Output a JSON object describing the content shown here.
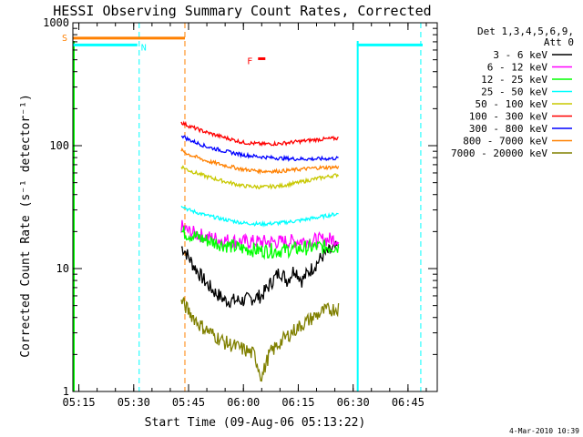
{
  "chart_data": {
    "type": "line",
    "title": "HESSI Observing Summary Count Rates, Corrected",
    "xlabel": "Start Time (09-Aug-06 05:13:22)",
    "ylabel": "Corrected Count Rate (s⁻¹ detector⁻¹)",
    "xlim": [
      "05:13:22",
      "06:53:00"
    ],
    "ylim": [
      1,
      1000
    ],
    "yscale": "log",
    "x_ticks": [
      "05:15",
      "05:30",
      "05:45",
      "06:00",
      "06:15",
      "06:30",
      "06:45"
    ],
    "y_ticks": [
      "1",
      "10",
      "100",
      "1000"
    ],
    "legend_title": [
      "Det 1,3,4,5,6,9,",
      "Att 0"
    ],
    "legend_position": "right",
    "footer": "4-Mar-2010 10:39",
    "series": [
      {
        "name": "3 - 6 keV",
        "color": "#000000",
        "x": [
          "05:43:00",
          "05:44:00",
          "05:46:00",
          "05:48:00",
          "05:50:00",
          "05:52:00",
          "05:55:00",
          "06:00:00",
          "06:05:00",
          "06:08:00",
          "06:10:00",
          "06:12:00",
          "06:14:00",
          "06:16:00",
          "06:18:00",
          "06:20:00",
          "06:22:00",
          "06:24:00",
          "06:26:00"
        ],
        "values": [
          15,
          14,
          11,
          9,
          7.5,
          6.5,
          5.5,
          5.5,
          6,
          8,
          9.5,
          8,
          10,
          8,
          9.5,
          11,
          13,
          14,
          15
        ]
      },
      {
        "name": "6 - 12 keV",
        "color": "#ff00ff",
        "x": [
          "05:43:00",
          "05:45:00",
          "05:50:00",
          "05:55:00",
          "06:00:00",
          "06:05:00",
          "06:10:00",
          "06:15:00",
          "06:20:00",
          "06:26:00"
        ],
        "values": [
          22,
          20,
          18,
          17,
          16.5,
          16.5,
          16.5,
          16.8,
          17,
          17.5
        ]
      },
      {
        "name": "12 - 25 keV",
        "color": "#00ff00",
        "x": [
          "05:43:00",
          "05:45:00",
          "05:50:00",
          "05:55:00",
          "06:00:00",
          "06:05:00",
          "06:10:00",
          "06:15:00",
          "06:20:00",
          "06:26:00"
        ],
        "values": [
          20,
          19,
          17,
          15.5,
          14.5,
          14,
          14,
          14.5,
          15,
          15
        ]
      },
      {
        "name": "25 - 50 keV",
        "color": "#00ffff",
        "x": [
          "05:43:00",
          "05:45:00",
          "05:50:00",
          "05:55:00",
          "06:00:00",
          "06:05:00",
          "06:10:00",
          "06:15:00",
          "06:20:00",
          "06:26:00"
        ],
        "values": [
          33,
          30,
          27,
          25,
          23.5,
          23,
          23.5,
          24.5,
          26,
          28
        ]
      },
      {
        "name": "50 - 100 keV",
        "color": "#c8c800",
        "x": [
          "05:43:00",
          "05:45:00",
          "05:50:00",
          "05:55:00",
          "06:00:00",
          "06:05:00",
          "06:10:00",
          "06:15:00",
          "06:20:00",
          "06:26:00"
        ],
        "values": [
          68,
          63,
          56,
          51,
          47,
          46,
          47,
          50,
          54,
          58
        ]
      },
      {
        "name": "100 - 300 keV",
        "color": "#ff0000",
        "x": [
          "05:43:00",
          "05:45:00",
          "05:50:00",
          "05:55:00",
          "06:00:00",
          "06:05:00",
          "06:10:00",
          "06:15:00",
          "06:20:00",
          "06:26:00"
        ],
        "values": [
          155,
          145,
          128,
          116,
          106,
          103,
          104,
          108,
          112,
          115
        ]
      },
      {
        "name": "300 - 800 keV",
        "color": "#0000ff",
        "x": [
          "05:43:00",
          "05:45:00",
          "05:50:00",
          "05:55:00",
          "06:00:00",
          "06:05:00",
          "06:10:00",
          "06:15:00",
          "06:20:00",
          "06:26:00"
        ],
        "values": [
          122,
          112,
          98,
          90,
          84,
          81,
          79,
          78,
          78,
          79
        ]
      },
      {
        "name": "800 - 7000 keV",
        "color": "#ff8000",
        "x": [
          "05:43:00",
          "05:45:00",
          "05:50:00",
          "05:55:00",
          "06:00:00",
          "06:05:00",
          "06:10:00",
          "06:15:00",
          "06:20:00",
          "06:26:00"
        ],
        "values": [
          92,
          85,
          75,
          69,
          64,
          62,
          62,
          64,
          66,
          67
        ]
      },
      {
        "name": "7000 - 20000 keV",
        "color": "#808000",
        "x": [
          "05:43:00",
          "05:45:00",
          "05:48:00",
          "05:51:00",
          "05:55:00",
          "06:00:00",
          "06:03:00",
          "06:05:00",
          "06:07:00",
          "06:10:00",
          "06:13:00",
          "06:16:00",
          "06:19:00",
          "06:22:00",
          "06:26:00"
        ],
        "values": [
          5.5,
          4.5,
          3.5,
          3.0,
          2.5,
          2.2,
          2.0,
          1.3,
          2.0,
          2.5,
          3.0,
          3.5,
          4.0,
          4.5,
          4.8
        ]
      }
    ],
    "intervals": [
      {
        "label": "S",
        "color": "#ff8000",
        "start": "05:13:22",
        "end": "05:44:00",
        "level": 750
      },
      {
        "label": "N",
        "color": "#00ffff",
        "start": "05:13:22",
        "end": "05:31:00",
        "level": 660
      },
      {
        "label": "N",
        "color": "#00ffff",
        "start": "06:31:00",
        "end": "06:49:00",
        "level": 660
      },
      {
        "label": "F",
        "color": "#ff0000",
        "start": "06:04:00",
        "end": "06:06:00",
        "level": 510
      }
    ],
    "boundaries": [
      {
        "time": "05:44:00",
        "color": "#ff8000"
      },
      {
        "time": "05:31:30",
        "color": "#00ffff"
      },
      {
        "time": "06:48:30",
        "color": "#00ffff"
      }
    ],
    "solid_edges": [
      {
        "time": "05:13:22",
        "color": "#00ff00"
      },
      {
        "time": "06:31:00",
        "color": "#00ffff"
      }
    ]
  }
}
